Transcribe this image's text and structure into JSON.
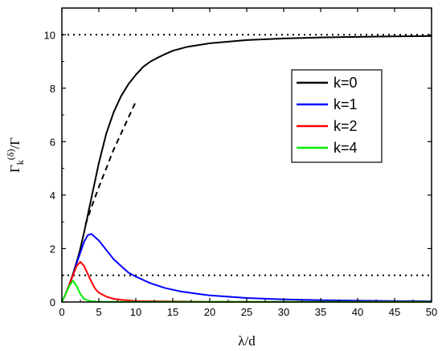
{
  "chart_data": {
    "type": "line",
    "title": "",
    "xlabel": "λ/d",
    "ylabel": "Γk(δ)/Γ",
    "ylabel_parts": {
      "main": "Γ",
      "sub": "k",
      "sup": "(δ)",
      "tail": "/Γ"
    },
    "xlim": [
      0,
      50
    ],
    "ylim": [
      0,
      11
    ],
    "x_ticks": [
      0,
      5,
      10,
      15,
      20,
      25,
      30,
      35,
      40,
      45,
      50
    ],
    "y_ticks": [
      0,
      2,
      4,
      6,
      8,
      10
    ],
    "grid": false,
    "legend_position": "center-right",
    "reference_lines": [
      {
        "y": 10,
        "style": "dotted",
        "color": "#000000"
      },
      {
        "y": 1,
        "style": "dotted",
        "color": "#000000"
      }
    ],
    "series": [
      {
        "name": "k=0",
        "color": "#000000",
        "x": [
          0,
          0.5,
          1,
          1.5,
          2,
          2.5,
          3,
          3.5,
          4,
          5,
          6,
          7,
          8,
          9,
          10,
          11,
          12,
          13,
          14,
          15,
          17,
          20,
          25,
          30,
          35,
          40,
          45,
          50
        ],
        "y": [
          0,
          0.3,
          0.65,
          1.05,
          1.5,
          2.0,
          2.6,
          3.25,
          3.9,
          5.2,
          6.3,
          7.1,
          7.7,
          8.15,
          8.5,
          8.8,
          9.0,
          9.15,
          9.28,
          9.4,
          9.55,
          9.68,
          9.8,
          9.86,
          9.9,
          9.92,
          9.94,
          9.95
        ]
      },
      {
        "name": "k=0 (asymptote)",
        "color": "#000000",
        "dashed": true,
        "x": [
          3.2,
          4,
          5,
          6,
          7,
          8,
          9,
          10
        ],
        "y": [
          2.9,
          3.55,
          4.3,
          5.0,
          5.7,
          6.3,
          6.9,
          7.5
        ]
      },
      {
        "name": "k=1",
        "color": "#0000ff",
        "x": [
          0,
          0.5,
          1,
          1.5,
          2,
          2.5,
          3,
          3.5,
          4,
          5,
          6,
          7,
          8,
          9,
          10,
          12,
          14,
          16,
          18,
          20,
          25,
          30,
          35,
          40,
          45,
          50
        ],
        "y": [
          0,
          0.3,
          0.65,
          1.0,
          1.45,
          1.85,
          2.25,
          2.5,
          2.55,
          2.3,
          1.95,
          1.6,
          1.35,
          1.1,
          0.95,
          0.7,
          0.52,
          0.4,
          0.32,
          0.25,
          0.15,
          0.1,
          0.07,
          0.05,
          0.04,
          0.03
        ]
      },
      {
        "name": "k=2",
        "color": "#ff0000",
        "x": [
          0,
          0.5,
          1,
          1.5,
          2,
          2.5,
          3,
          3.5,
          4,
          4.5,
          5,
          6,
          7,
          8,
          10,
          12,
          15,
          20,
          25,
          30,
          35,
          40,
          45,
          50
        ],
        "y": [
          0,
          0.3,
          0.65,
          1.0,
          1.35,
          1.5,
          1.35,
          1.05,
          0.75,
          0.5,
          0.35,
          0.2,
          0.12,
          0.08,
          0.04,
          0.03,
          0.02,
          0.01,
          0.01,
          0.01,
          0.01,
          0.01,
          0.01,
          0.01
        ]
      },
      {
        "name": "k=4",
        "color": "#00ee00",
        "x": [
          0,
          0.5,
          1,
          1.5,
          2,
          2.5,
          3,
          3.5,
          4,
          5,
          6,
          8,
          10,
          15,
          20,
          30,
          40,
          50
        ],
        "y": [
          0,
          0.3,
          0.6,
          0.8,
          0.6,
          0.3,
          0.12,
          0.06,
          0.03,
          0.01,
          0.01,
          0.01,
          0.01,
          0.01,
          0.01,
          0.01,
          0.01,
          0.01
        ]
      }
    ],
    "legend_entries": [
      "k=0",
      "k=1",
      "k=2",
      "k=4"
    ]
  }
}
